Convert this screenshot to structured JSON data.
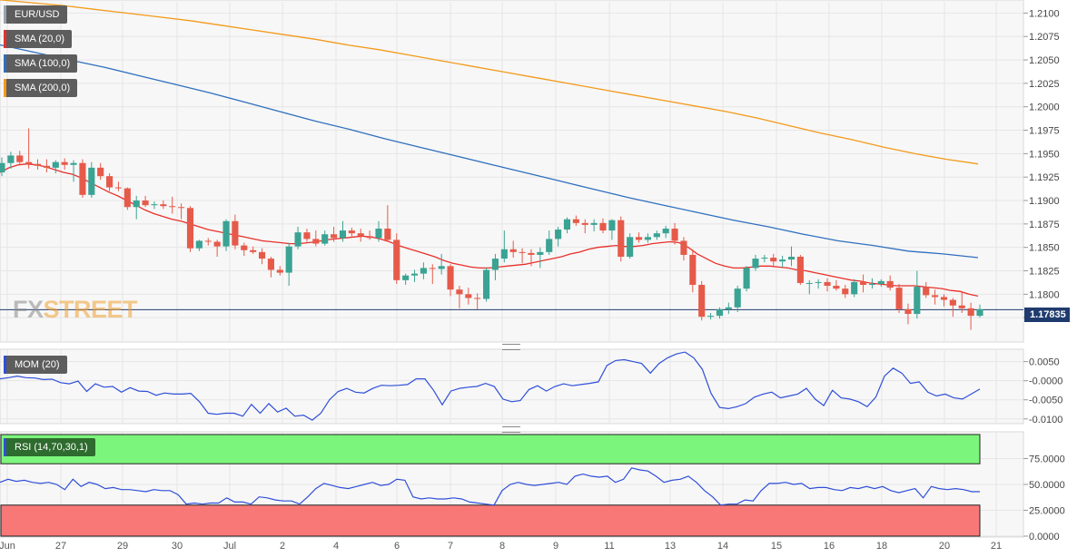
{
  "chart_data": [
    {
      "type": "candlestick",
      "pair": "EUR/USD",
      "indicators": [
        {
          "name": "SMA (20,0)",
          "color": "#e8302b"
        },
        {
          "name": "SMA (100,0)",
          "color": "#2f6fbf"
        },
        {
          "name": "SMA (200,0)",
          "color": "#f39a1a"
        }
      ],
      "ylim": [
        1.175,
        1.2112
      ],
      "yticks": [
        "1.2100",
        "1.2075",
        "1.2050",
        "1.2025",
        "1.2000",
        "1.1975",
        "1.1950",
        "1.1925",
        "1.1900",
        "1.1875",
        "1.1850",
        "1.1825",
        "1.1800",
        "1.1775"
      ],
      "ytick_values": [
        1.21,
        1.2075,
        1.205,
        1.2025,
        1.2,
        1.1975,
        1.195,
        1.1925,
        1.19,
        1.1875,
        1.185,
        1.1825,
        1.18,
        1.1775
      ],
      "last_price": "1.17835",
      "last_price_value": 1.17835,
      "candles": [
        [
          1.193,
          1.1946,
          1.1926,
          1.194
        ],
        [
          1.194,
          1.1952,
          1.1934,
          1.1948
        ],
        [
          1.1948,
          1.1953,
          1.1938,
          1.1941
        ],
        [
          1.1941,
          1.1977,
          1.1934,
          1.1939
        ],
        [
          1.1939,
          1.1944,
          1.1933,
          1.1937
        ],
        [
          1.1937,
          1.1944,
          1.193,
          1.1935
        ],
        [
          1.1935,
          1.1943,
          1.1929,
          1.1941
        ],
        [
          1.1941,
          1.1945,
          1.1933,
          1.1938
        ],
        [
          1.1938,
          1.1943,
          1.192,
          1.194
        ],
        [
          1.194,
          1.1944,
          1.1903,
          1.1906
        ],
        [
          1.1906,
          1.1941,
          1.1903,
          1.1935
        ],
        [
          1.1935,
          1.194,
          1.1922,
          1.1926
        ],
        [
          1.1926,
          1.1929,
          1.191,
          1.1914
        ],
        [
          1.1914,
          1.192,
          1.191,
          1.1913
        ],
        [
          1.1913,
          1.1914,
          1.189,
          1.1893
        ],
        [
          1.1893,
          1.1905,
          1.188,
          1.19
        ],
        [
          1.19,
          1.1905,
          1.1893,
          1.1895
        ],
        [
          1.1895,
          1.1899,
          1.1891,
          1.1896
        ],
        [
          1.1896,
          1.19,
          1.1891,
          1.1894
        ],
        [
          1.1894,
          1.1904,
          1.1886,
          1.1893
        ],
        [
          1.1893,
          1.1897,
          1.188,
          1.1892
        ],
        [
          1.1892,
          1.1894,
          1.1845,
          1.1849
        ],
        [
          1.1849,
          1.1858,
          1.1846,
          1.1857
        ],
        [
          1.1857,
          1.186,
          1.1852,
          1.1856
        ],
        [
          1.1856,
          1.1858,
          1.184,
          1.1851
        ],
        [
          1.1851,
          1.188,
          1.1846,
          1.1878
        ],
        [
          1.1878,
          1.1885,
          1.1848,
          1.1852
        ],
        [
          1.1852,
          1.1855,
          1.1841,
          1.1847
        ],
        [
          1.1847,
          1.1851,
          1.1843,
          1.1845
        ],
        [
          1.1845,
          1.1849,
          1.1832,
          1.1838
        ],
        [
          1.1838,
          1.184,
          1.1818,
          1.1826
        ],
        [
          1.1826,
          1.183,
          1.182,
          1.1823
        ],
        [
          1.1823,
          1.1855,
          1.1809,
          1.1851
        ],
        [
          1.1851,
          1.1872,
          1.1848,
          1.1866
        ],
        [
          1.1866,
          1.187,
          1.1856,
          1.1859
        ],
        [
          1.1859,
          1.1868,
          1.1851,
          1.1854
        ],
        [
          1.1854,
          1.1868,
          1.1852,
          1.1864
        ],
        [
          1.1864,
          1.1872,
          1.1856,
          1.186
        ],
        [
          1.186,
          1.1878,
          1.1856,
          1.1868
        ],
        [
          1.1868,
          1.1871,
          1.186,
          1.1865
        ],
        [
          1.1865,
          1.187,
          1.1856,
          1.1862
        ],
        [
          1.1862,
          1.1868,
          1.1858,
          1.186
        ],
        [
          1.186,
          1.1878,
          1.1856,
          1.187
        ],
        [
          1.187,
          1.1895,
          1.1856,
          1.1858
        ],
        [
          1.1858,
          1.1865,
          1.1811,
          1.1815
        ],
        [
          1.1815,
          1.1822,
          1.181,
          1.182
        ],
        [
          1.182,
          1.1826,
          1.1813,
          1.1822
        ],
        [
          1.1822,
          1.1834,
          1.1816,
          1.1828
        ],
        [
          1.1828,
          1.1832,
          1.1811,
          1.1827
        ],
        [
          1.1827,
          1.1843,
          1.1821,
          1.183
        ],
        [
          1.183,
          1.1832,
          1.1798,
          1.1805
        ],
        [
          1.1805,
          1.1809,
          1.1785,
          1.18
        ],
        [
          1.18,
          1.1807,
          1.1789,
          1.1796
        ],
        [
          1.1796,
          1.1801,
          1.1784,
          1.1795
        ],
        [
          1.1795,
          1.1828,
          1.1792,
          1.1826
        ],
        [
          1.1826,
          1.1843,
          1.1815,
          1.1838
        ],
        [
          1.1838,
          1.1868,
          1.1834,
          1.1848
        ],
        [
          1.1848,
          1.1857,
          1.1839,
          1.1845
        ],
        [
          1.1845,
          1.1849,
          1.1833,
          1.1844
        ],
        [
          1.1844,
          1.1848,
          1.183,
          1.1842
        ],
        [
          1.1842,
          1.185,
          1.1828,
          1.1845
        ],
        [
          1.1845,
          1.1868,
          1.1842,
          1.1859
        ],
        [
          1.1859,
          1.1872,
          1.1851,
          1.1869
        ],
        [
          1.1869,
          1.1882,
          1.1865,
          1.188
        ],
        [
          1.188,
          1.1884,
          1.1873,
          1.1876
        ],
        [
          1.1876,
          1.188,
          1.1865,
          1.1874
        ],
        [
          1.1874,
          1.188,
          1.1867,
          1.1876
        ],
        [
          1.1876,
          1.1881,
          1.1865,
          1.1868
        ],
        [
          1.1868,
          1.188,
          1.1858,
          1.1879
        ],
        [
          1.1879,
          1.1883,
          1.1835,
          1.184
        ],
        [
          1.184,
          1.1865,
          1.1838,
          1.1861
        ],
        [
          1.1861,
          1.1866,
          1.1855,
          1.1858
        ],
        [
          1.1858,
          1.1865,
          1.1855,
          1.1861
        ],
        [
          1.1861,
          1.1868,
          1.1858,
          1.1865
        ],
        [
          1.1865,
          1.1873,
          1.186,
          1.187
        ],
        [
          1.187,
          1.1876,
          1.1853,
          1.1857
        ],
        [
          1.1857,
          1.1861,
          1.1836,
          1.1842
        ],
        [
          1.1842,
          1.1848,
          1.1802,
          1.181
        ],
        [
          1.181,
          1.1814,
          1.1772,
          1.1776
        ],
        [
          1.1776,
          1.178,
          1.1773,
          1.1777
        ],
        [
          1.1777,
          1.1786,
          1.1774,
          1.1784
        ],
        [
          1.1784,
          1.1791,
          1.1779,
          1.1786
        ],
        [
          1.1786,
          1.1809,
          1.1781,
          1.1806
        ],
        [
          1.1806,
          1.183,
          1.1803,
          1.1828
        ],
        [
          1.1828,
          1.1842,
          1.1825,
          1.1838
        ],
        [
          1.1838,
          1.1842,
          1.1834,
          1.1839
        ],
        [
          1.1839,
          1.1843,
          1.183,
          1.1835
        ],
        [
          1.1835,
          1.1841,
          1.1829,
          1.1837
        ],
        [
          1.1837,
          1.1851,
          1.183,
          1.184
        ],
        [
          1.184,
          1.1842,
          1.181,
          1.1812
        ],
        [
          1.1812,
          1.1815,
          1.18,
          1.1812
        ],
        [
          1.1812,
          1.1816,
          1.1806,
          1.1813
        ],
        [
          1.1813,
          1.1817,
          1.1803,
          1.1809
        ],
        [
          1.1809,
          1.1815,
          1.1804,
          1.1806
        ],
        [
          1.1806,
          1.181,
          1.1796,
          1.18
        ],
        [
          1.18,
          1.1816,
          1.1797,
          1.1813
        ],
        [
          1.1813,
          1.1821,
          1.1802,
          1.181
        ],
        [
          1.181,
          1.1817,
          1.1806,
          1.1811
        ],
        [
          1.1811,
          1.1816,
          1.1808,
          1.1814
        ],
        [
          1.1814,
          1.182,
          1.1804,
          1.1807
        ],
        [
          1.1807,
          1.1811,
          1.178,
          1.1784
        ],
        [
          1.1784,
          1.179,
          1.1768,
          1.1779
        ],
        [
          1.1779,
          1.1825,
          1.1774,
          1.1808
        ],
        [
          1.1808,
          1.1813,
          1.1796,
          1.1799
        ],
        [
          1.1799,
          1.1805,
          1.1789,
          1.1797
        ],
        [
          1.1797,
          1.18,
          1.1787,
          1.1794
        ],
        [
          1.1794,
          1.1796,
          1.1776,
          1.1788
        ],
        [
          1.1788,
          1.1802,
          1.178,
          1.1785
        ],
        [
          1.1785,
          1.1791,
          1.1762,
          1.1777
        ],
        [
          1.1777,
          1.1789,
          1.1775,
          1.1784
        ]
      ],
      "sma20": [
        1.193,
        1.1935,
        1.1938,
        1.1939,
        1.1938,
        1.1936,
        1.1933,
        1.193,
        1.1928,
        1.1924,
        1.1919,
        1.1914,
        1.1909,
        1.1905,
        1.19,
        1.1895,
        1.189,
        1.1886,
        1.1883,
        1.188,
        1.1878,
        1.1875,
        1.1872,
        1.1869,
        1.1867,
        1.1865,
        1.1863,
        1.1861,
        1.1859,
        1.1857,
        1.1856,
        1.1855,
        1.1854,
        1.1854,
        1.1855,
        1.1856,
        1.1858,
        1.1859,
        1.186,
        1.1861,
        1.1862,
        1.1861,
        1.1859,
        1.1856,
        1.1852,
        1.1849,
        1.1846,
        1.1843,
        1.184,
        1.1836,
        1.1833,
        1.1831,
        1.1829,
        1.1828,
        1.1828,
        1.1829,
        1.183,
        1.1831,
        1.1832,
        1.1834,
        1.1836,
        1.1838,
        1.184,
        1.1843,
        1.1845,
        1.1848,
        1.185,
        1.1851,
        1.1852,
        1.1851,
        1.1851,
        1.1852,
        1.1854,
        1.1855,
        1.1856,
        1.1855,
        1.185,
        1.1843,
        1.1838,
        1.1833,
        1.183,
        1.1828,
        1.1828,
        1.1829,
        1.183,
        1.183,
        1.1829,
        1.1828,
        1.1826,
        1.1825,
        1.1823,
        1.1821,
        1.1819,
        1.1817,
        1.1815,
        1.1814,
        1.1812,
        1.1811,
        1.181,
        1.1809,
        1.1809,
        1.1809,
        1.1808,
        1.1807,
        1.1806,
        1.1804,
        1.1803,
        1.18,
        1.1798
      ],
      "sma100": [
        1.2066,
        1.2058,
        1.205,
        1.2042,
        1.2033,
        1.2024,
        1.2015,
        1.2005,
        1.1995,
        1.1985,
        1.1976,
        1.1966,
        1.1957,
        1.1948,
        1.1939,
        1.193,
        1.1921,
        1.1912,
        1.1903,
        1.1895,
        1.1887,
        1.1879,
        1.1872,
        1.1864,
        1.1857,
        1.1852,
        1.1846,
        1.1843,
        1.1839
      ],
      "sma200": [
        1.2114,
        1.2111,
        1.2108,
        1.2104,
        1.21,
        1.2096,
        1.2092,
        1.2087,
        1.2082,
        1.2077,
        1.2072,
        1.2066,
        1.2061,
        1.2055,
        1.2049,
        1.2043,
        1.2037,
        1.2031,
        1.2025,
        1.2019,
        1.2013,
        1.2007,
        1.2001,
        1.1995,
        1.1988,
        1.198,
        1.1972,
        1.1965,
        1.1957,
        1.195,
        1.1944,
        1.1939
      ]
    },
    {
      "type": "line",
      "name": "MOM (20)",
      "ylim": [
        -0.011,
        0.008
      ],
      "yticks": [
        "0.0050",
        "-0.0000",
        "-0.0050",
        "-0.0100"
      ],
      "ytick_values": [
        0.005,
        0.0,
        -0.005,
        -0.01
      ],
      "values": [
        0.0005,
        0.0008,
        0.0012,
        0.0008,
        0.0007,
        0.0003,
        0.0004,
        -0.0005,
        -0.0008,
        -0.0001,
        -0.0028,
        -0.0008,
        -0.0017,
        -0.0015,
        -0.003,
        -0.0018,
        -0.0027,
        -0.0028,
        -0.0038,
        -0.0032,
        -0.0035,
        -0.0035,
        -0.0033,
        -0.0055,
        -0.0085,
        -0.0088,
        -0.0085,
        -0.0085,
        -0.0093,
        -0.0062,
        -0.0085,
        -0.006,
        -0.0082,
        -0.0072,
        -0.0093,
        -0.009,
        -0.0103,
        -0.0085,
        -0.005,
        -0.0028,
        -0.002,
        -0.003,
        -0.0032,
        -0.002,
        -0.0012,
        -0.0013,
        -0.0012,
        -0.001,
        0.0005,
        0.0005,
        -0.0025,
        -0.0063,
        -0.0027,
        -0.002,
        -0.0017,
        -0.0015,
        -0.0007,
        -0.0015,
        -0.0048,
        -0.0055,
        -0.0052,
        -0.0023,
        -0.0013,
        -0.0027,
        -0.0015,
        -0.0008,
        -0.0013,
        -0.001,
        -0.0007,
        -0.0003,
        0.004,
        0.0053,
        0.0055,
        0.005,
        0.0045,
        0.002,
        0.0045,
        0.006,
        0.007,
        0.0075,
        0.006,
        0.003,
        -0.0033,
        -0.007,
        -0.0073,
        -0.0068,
        -0.006,
        -0.0043,
        -0.0035,
        -0.003,
        -0.0045,
        -0.004,
        -0.0035,
        -0.002,
        -0.0048,
        -0.0065,
        -0.0025,
        -0.0045,
        -0.0048,
        -0.0055,
        -0.0068,
        -0.0043,
        0.0012,
        0.0033,
        0.002,
        -0.0007,
        -0.0003,
        -0.003,
        -0.004,
        -0.0035,
        -0.0045,
        -0.0048,
        -0.0035,
        -0.0022
      ]
    },
    {
      "type": "line",
      "name": "RSI (14,70,30,1)",
      "ylim": [
        0,
        100
      ],
      "overbought": 70,
      "oversold": 30,
      "yticks": [
        "75.0000",
        "50.0000",
        "25.0000",
        "0.0000"
      ],
      "ytick_values": [
        75,
        50,
        25,
        0
      ],
      "values": [
        52,
        55,
        53,
        54,
        52,
        51,
        52,
        50,
        45,
        55,
        48,
        52,
        50,
        46,
        47,
        45,
        45,
        44,
        43,
        45,
        44,
        44,
        40,
        31,
        32,
        31,
        32,
        32,
        37,
        33,
        33,
        31,
        38,
        37,
        35,
        34,
        34,
        31,
        38,
        46,
        51,
        49,
        47,
        46,
        48,
        50,
        52,
        49,
        50,
        55,
        54,
        38,
        36,
        37,
        36,
        36,
        37,
        36,
        33,
        32,
        31,
        30,
        44,
        50,
        52,
        50,
        49,
        50,
        51,
        52,
        50,
        58,
        60,
        58,
        57,
        58,
        52,
        55,
        66,
        64,
        63,
        58,
        52,
        54,
        55,
        58,
        52,
        44,
        38,
        30,
        31,
        31,
        35,
        34,
        44,
        51,
        51,
        52,
        50,
        51,
        46,
        47,
        47,
        45,
        44,
        47,
        46,
        48,
        46,
        48,
        44,
        42,
        44,
        46,
        37,
        48,
        46,
        45,
        46,
        45,
        43,
        43
      ]
    },
    {
      "type": "axis",
      "x_labels": [
        "Jun",
        "27",
        "29",
        "30",
        "Jul",
        "2",
        "4",
        "6",
        "7",
        "8",
        "9",
        "11",
        "13",
        "14",
        "15",
        "16",
        "18",
        "20",
        "21"
      ]
    }
  ]
}
